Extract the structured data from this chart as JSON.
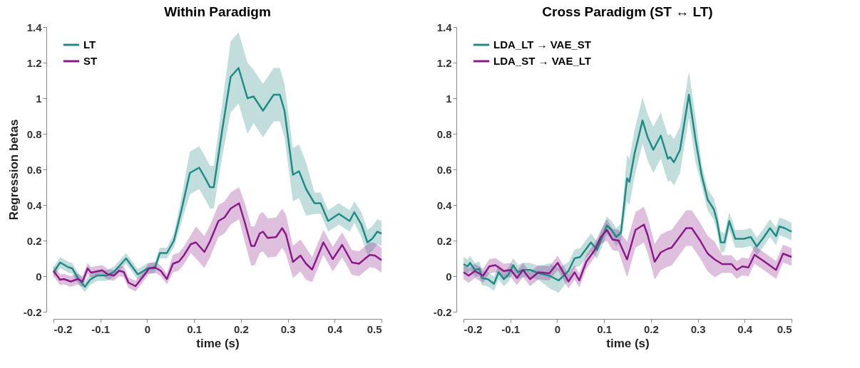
{
  "chart_data": [
    {
      "type": "line",
      "title": "Within Paradigm",
      "xlabel": "time (s)",
      "ylabel": "Regression betas",
      "xlim": [
        -0.2,
        0.5
      ],
      "ylim": [
        -0.2,
        1.4
      ],
      "xticks": [
        -0.2,
        -0.1,
        0,
        0.1,
        0.2,
        0.3,
        0.4,
        0.5
      ],
      "yticks": [
        -0.2,
        0,
        0.2,
        0.4,
        0.6,
        0.8,
        1,
        1.2,
        1.4
      ],
      "legend": "top left",
      "series": [
        {
          "name": "LT",
          "color": "#1f8a86",
          "x": [
            -0.2,
            -0.186,
            -0.168,
            -0.16,
            -0.148,
            -0.133,
            -0.122,
            -0.107,
            -0.086,
            -0.071,
            -0.045,
            -0.02,
            0.001,
            0.016,
            0.027,
            0.042,
            0.057,
            0.073,
            0.091,
            0.111,
            0.124,
            0.134,
            0.142,
            0.16,
            0.178,
            0.195,
            0.214,
            0.227,
            0.247,
            0.27,
            0.283,
            0.293,
            0.311,
            0.324,
            0.339,
            0.357,
            0.37,
            0.386,
            0.409,
            0.432,
            0.442,
            0.457,
            0.47,
            0.48,
            0.491,
            0.5
          ],
          "values": [
            0.02,
            0.077,
            0.05,
            0.044,
            -0.01,
            -0.06,
            -0.02,
            0.004,
            0.004,
            0.024,
            0.1,
            0.01,
            0.044,
            0.044,
            0.13,
            0.13,
            0.2,
            0.37,
            0.58,
            0.61,
            0.55,
            0.5,
            0.5,
            0.82,
            1.12,
            1.17,
            1.0,
            1.01,
            0.93,
            1.02,
            1.02,
            0.93,
            0.57,
            0.59,
            0.49,
            0.41,
            0.41,
            0.31,
            0.35,
            0.31,
            0.36,
            0.29,
            0.19,
            0.21,
            0.25,
            0.24
          ],
          "lower": [
            -0.01,
            0.047,
            0.02,
            0.014,
            -0.04,
            -0.09,
            -0.05,
            -0.026,
            -0.026,
            -0.006,
            0.07,
            -0.02,
            0.014,
            0.014,
            0.1,
            0.1,
            0.16,
            0.3,
            0.46,
            0.49,
            0.43,
            0.38,
            0.38,
            0.67,
            0.92,
            0.97,
            0.8,
            0.86,
            0.78,
            0.87,
            0.87,
            0.78,
            0.42,
            0.44,
            0.34,
            0.35,
            0.35,
            0.25,
            0.29,
            0.25,
            0.3,
            0.22,
            0.12,
            0.14,
            0.18,
            0.17
          ],
          "upper": [
            0.05,
            0.107,
            0.08,
            0.074,
            0.02,
            -0.03,
            0.01,
            0.034,
            0.034,
            0.054,
            0.13,
            0.04,
            0.074,
            0.074,
            0.16,
            0.16,
            0.24,
            0.44,
            0.7,
            0.73,
            0.67,
            0.62,
            0.62,
            0.97,
            1.32,
            1.37,
            1.2,
            1.16,
            1.08,
            1.17,
            1.17,
            1.08,
            0.72,
            0.74,
            0.64,
            0.47,
            0.47,
            0.37,
            0.41,
            0.37,
            0.42,
            0.36,
            0.26,
            0.28,
            0.32,
            0.31
          ]
        },
        {
          "name": "ST",
          "color": "#8b1a89",
          "x": [
            -0.2,
            -0.186,
            -0.178,
            -0.163,
            -0.148,
            -0.138,
            -0.127,
            -0.12,
            -0.096,
            -0.084,
            -0.071,
            -0.06,
            -0.05,
            -0.04,
            -0.025,
            -0.009,
            0.004,
            0.016,
            0.029,
            0.042,
            0.055,
            0.068,
            0.078,
            0.093,
            0.104,
            0.122,
            0.134,
            0.152,
            0.165,
            0.178,
            0.196,
            0.209,
            0.222,
            0.229,
            0.24,
            0.247,
            0.257,
            0.275,
            0.288,
            0.296,
            0.311,
            0.327,
            0.339,
            0.352,
            0.376,
            0.396,
            0.416,
            0.437,
            0.452,
            0.475,
            0.486,
            0.5
          ],
          "values": [
            0.03,
            -0.02,
            -0.016,
            -0.03,
            -0.016,
            -0.03,
            0.044,
            0.02,
            0.033,
            0.01,
            0.004,
            0.03,
            0.024,
            -0.036,
            -0.056,
            -0.003,
            0.044,
            0.05,
            0.03,
            -0.016,
            0.07,
            0.083,
            0.116,
            0.18,
            0.19,
            0.136,
            0.196,
            0.31,
            0.33,
            0.38,
            0.41,
            0.295,
            0.17,
            0.17,
            0.24,
            0.25,
            0.215,
            0.22,
            0.27,
            0.235,
            0.08,
            0.116,
            0.07,
            0.037,
            0.19,
            0.096,
            0.176,
            0.077,
            0.07,
            0.12,
            0.116,
            0.09
          ],
          "lower": [
            0,
            -0.05,
            -0.046,
            -0.06,
            -0.046,
            -0.06,
            0.014,
            -0.01,
            0.003,
            -0.02,
            -0.026,
            0,
            -0.006,
            -0.066,
            -0.086,
            -0.033,
            0.014,
            0.02,
            0,
            -0.046,
            0.02,
            0.033,
            0.066,
            0.13,
            0.1,
            0.046,
            0.106,
            0.22,
            0.24,
            0.29,
            0.32,
            0.185,
            0.06,
            0.06,
            0.13,
            0.14,
            0.105,
            0.11,
            0.16,
            0.125,
            -0.01,
            0.026,
            -0.02,
            -0.033,
            0.12,
            0.026,
            0.106,
            0.007,
            0,
            0.05,
            0.046,
            0.02
          ],
          "upper": [
            0.06,
            0.01,
            0.014,
            0,
            0.014,
            0,
            0.074,
            0.05,
            0.063,
            0.04,
            0.034,
            0.06,
            0.054,
            -0.006,
            -0.026,
            0.027,
            0.074,
            0.08,
            0.06,
            0.014,
            0.12,
            0.133,
            0.166,
            0.23,
            0.28,
            0.226,
            0.286,
            0.4,
            0.42,
            0.47,
            0.5,
            0.405,
            0.28,
            0.28,
            0.35,
            0.36,
            0.325,
            0.33,
            0.38,
            0.345,
            0.17,
            0.206,
            0.16,
            0.107,
            0.26,
            0.166,
            0.246,
            0.147,
            0.14,
            0.19,
            0.186,
            0.16
          ]
        }
      ]
    },
    {
      "type": "line",
      "title": "Cross Paradigm (ST ↔ LT)",
      "xlabel": "time (s)",
      "xlim": [
        -0.2,
        0.5
      ],
      "ylim": [
        -0.2,
        1.4
      ],
      "xticks": [
        -0.2,
        -0.1,
        0,
        0.1,
        0.2,
        0.3,
        0.4,
        0.5
      ],
      "yticks": [
        -0.2,
        0,
        0.2,
        0.4,
        0.6,
        0.8,
        1,
        1.2,
        1.4
      ],
      "legend": "top left",
      "series": [
        {
          "name": "LDA_LT → VAE_ST",
          "color": "#1f8a86",
          "x": [
            -0.2,
            -0.191,
            -0.186,
            -0.176,
            -0.166,
            -0.161,
            -0.148,
            -0.135,
            -0.125,
            -0.114,
            -0.104,
            -0.094,
            -0.084,
            -0.073,
            -0.058,
            -0.038,
            -0.017,
            0.003,
            0.024,
            0.037,
            0.049,
            0.072,
            0.085,
            0.106,
            0.116,
            0.126,
            0.136,
            0.149,
            0.154,
            0.165,
            0.182,
            0.193,
            0.205,
            0.221,
            0.236,
            0.241,
            0.249,
            0.262,
            0.281,
            0.295,
            0.308,
            0.321,
            0.334,
            0.341,
            0.349,
            0.357,
            0.367,
            0.38,
            0.398,
            0.413,
            0.426,
            0.441,
            0.454,
            0.467,
            0.474,
            0.485,
            0.5
          ],
          "values": [
            0.068,
            0.055,
            0.075,
            0.035,
            0.042,
            -0.01,
            -0.017,
            -0.043,
            0.022,
            -0.017,
            0.009,
            0.062,
            0.022,
            0.035,
            0.035,
            0.016,
            0.003,
            -0.024,
            0.029,
            0.1,
            0.108,
            0.19,
            0.147,
            0.285,
            0.26,
            0.22,
            0.245,
            0.55,
            0.53,
            0.69,
            0.875,
            0.78,
            0.71,
            0.79,
            0.66,
            0.67,
            0.64,
            0.71,
            1.02,
            0.77,
            0.57,
            0.43,
            0.377,
            0.31,
            0.19,
            0.19,
            0.31,
            0.21,
            0.21,
            0.22,
            0.167,
            0.22,
            0.27,
            0.225,
            0.28,
            0.27,
            0.25
          ],
          "lower": [
            0.028,
            0.015,
            0.035,
            -0.005,
            0.002,
            -0.05,
            -0.057,
            -0.083,
            -0.018,
            -0.057,
            -0.031,
            0.022,
            -0.018,
            -0.005,
            -0.005,
            -0.024,
            -0.067,
            -0.094,
            -0.021,
            0.05,
            0.058,
            0.14,
            0.097,
            0.235,
            0.21,
            0.17,
            0.195,
            0.42,
            0.4,
            0.56,
            0.745,
            0.65,
            0.58,
            0.66,
            0.53,
            0.54,
            0.51,
            0.58,
            0.89,
            0.64,
            0.51,
            0.37,
            0.317,
            0.25,
            0.13,
            0.14,
            0.26,
            0.16,
            0.16,
            0.17,
            0.117,
            0.17,
            0.22,
            0.175,
            0.23,
            0.22,
            0.2
          ],
          "upper": [
            0.108,
            0.095,
            0.115,
            0.075,
            0.082,
            0.03,
            0.023,
            -0.003,
            0.062,
            0.023,
            0.049,
            0.102,
            0.062,
            0.075,
            0.075,
            0.056,
            0.073,
            0.046,
            0.079,
            0.15,
            0.158,
            0.24,
            0.197,
            0.335,
            0.31,
            0.27,
            0.295,
            0.68,
            0.66,
            0.82,
            1.005,
            0.91,
            0.84,
            0.92,
            0.79,
            0.8,
            0.77,
            0.84,
            1.15,
            0.9,
            0.63,
            0.49,
            0.437,
            0.37,
            0.25,
            0.24,
            0.36,
            0.26,
            0.26,
            0.27,
            0.217,
            0.27,
            0.32,
            0.275,
            0.33,
            0.32,
            0.3
          ]
        },
        {
          "name": "LDA_ST → VAE_LT",
          "color": "#8b1a89",
          "x": [
            -0.2,
            -0.189,
            -0.176,
            -0.158,
            -0.145,
            -0.132,
            -0.114,
            -0.099,
            -0.086,
            -0.073,
            -0.058,
            -0.04,
            -0.017,
            0.001,
            0.014,
            0.024,
            0.037,
            0.047,
            0.062,
            0.08,
            0.093,
            0.106,
            0.118,
            0.131,
            0.149,
            0.167,
            0.185,
            0.193,
            0.208,
            0.221,
            0.236,
            0.244,
            0.257,
            0.275,
            0.287,
            0.305,
            0.321,
            0.336,
            0.352,
            0.372,
            0.383,
            0.395,
            0.408,
            0.421,
            0.439,
            0.467,
            0.482,
            0.5
          ],
          "values": [
            0.022,
            0.003,
            0.029,
            0.003,
            0.055,
            0.062,
            0.029,
            0.035,
            -0.01,
            0.035,
            -0.017,
            0.022,
            0.016,
            0.075,
            0.016,
            -0.03,
            0.022,
            -0.024,
            0.081,
            0.147,
            0.22,
            0.26,
            0.206,
            0.2,
            0.094,
            0.26,
            0.29,
            0.23,
            0.081,
            0.134,
            0.154,
            0.16,
            0.206,
            0.27,
            0.27,
            0.2,
            0.127,
            0.094,
            0.068,
            0.068,
            0.035,
            0.055,
            0.049,
            0.12,
            0.088,
            0.035,
            0.127,
            0.108
          ],
          "lower": [
            -0.018,
            -0.037,
            -0.011,
            -0.037,
            0.015,
            0.022,
            -0.011,
            -0.005,
            -0.05,
            -0.005,
            -0.057,
            -0.018,
            -0.024,
            0.035,
            -0.024,
            -0.07,
            -0.018,
            -0.064,
            0.041,
            0.107,
            0.18,
            0.2,
            0.146,
            0.14,
            -0.006,
            0.16,
            0.19,
            0.13,
            -0.019,
            0.034,
            0.054,
            0.06,
            0.106,
            0.17,
            0.17,
            0.1,
            0.027,
            -0.006,
            0.018,
            0.018,
            -0.015,
            0.005,
            -0.001,
            0.07,
            0.038,
            -0.015,
            0.077,
            0.058
          ],
          "upper": [
            0.062,
            0.043,
            0.069,
            0.043,
            0.095,
            0.102,
            0.069,
            0.075,
            0.03,
            0.075,
            0.023,
            0.062,
            0.056,
            0.115,
            0.056,
            0.01,
            0.062,
            0.016,
            0.121,
            0.187,
            0.26,
            0.32,
            0.266,
            0.26,
            0.194,
            0.36,
            0.39,
            0.33,
            0.181,
            0.234,
            0.254,
            0.26,
            0.306,
            0.37,
            0.37,
            0.3,
            0.227,
            0.194,
            0.118,
            0.118,
            0.085,
            0.105,
            0.099,
            0.17,
            0.138,
            0.085,
            0.177,
            0.158
          ]
        }
      ]
    }
  ]
}
